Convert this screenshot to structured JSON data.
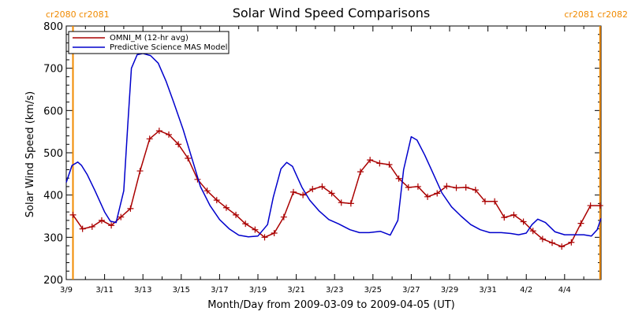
{
  "chart_data": {
    "type": "line",
    "title": "Solar Wind Speed Comparisons",
    "xlabel": "Month/Day from 2009-03-09 to 2009-04-05 (UT)",
    "ylabel": "Solar Wind Speed (km/s)",
    "xlim": [
      0,
      27.9
    ],
    "ylim": [
      200,
      800
    ],
    "yticks": [
      200,
      300,
      400,
      500,
      600,
      700,
      800
    ],
    "xticks": [
      {
        "x": 0,
        "label": "3/9"
      },
      {
        "x": 2,
        "label": "3/11"
      },
      {
        "x": 4,
        "label": "3/13"
      },
      {
        "x": 6,
        "label": "3/15"
      },
      {
        "x": 8,
        "label": "3/17"
      },
      {
        "x": 10,
        "label": "3/19"
      },
      {
        "x": 12,
        "label": "3/21"
      },
      {
        "x": 14,
        "label": "3/23"
      },
      {
        "x": 16,
        "label": "3/25"
      },
      {
        "x": 18,
        "label": "3/27"
      },
      {
        "x": 20,
        "label": "3/29"
      },
      {
        "x": 22,
        "label": "3/31"
      },
      {
        "x": 24,
        "label": "4/2"
      },
      {
        "x": 26,
        "label": "4/4"
      }
    ],
    "carrington_markers": [
      {
        "x": 0.35,
        "labels": [
          "cr2080",
          "cr2081"
        ],
        "side": "left"
      },
      {
        "x": 27.85,
        "labels": [
          "cr2081",
          "cr2082"
        ],
        "side": "right"
      }
    ],
    "legend_position": "top-left",
    "series": [
      {
        "name": "OMNI_M (12-hr avg)",
        "color": "#aa0000",
        "marker": "plus",
        "x": [
          0.35,
          0.85,
          1.35,
          1.85,
          2.35,
          2.85,
          3.35,
          3.85,
          4.35,
          4.85,
          5.35,
          5.85,
          6.35,
          6.85,
          7.35,
          7.85,
          8.35,
          8.85,
          9.35,
          9.85,
          10.35,
          10.85,
          11.35,
          11.85,
          12.35,
          12.85,
          13.35,
          13.85,
          14.35,
          14.85,
          15.35,
          15.85,
          16.35,
          16.85,
          17.35,
          17.85,
          18.35,
          18.85,
          19.35,
          19.85,
          20.35,
          20.85,
          21.35,
          21.85,
          22.35,
          22.85,
          23.35,
          23.85,
          24.35,
          24.85,
          25.35,
          25.85,
          26.35,
          26.85,
          27.35,
          27.85
        ],
        "values": [
          353,
          320,
          325,
          340,
          328,
          348,
          368,
          457,
          533,
          552,
          543,
          520,
          487,
          437,
          410,
          388,
          370,
          353,
          332,
          318,
          300,
          310,
          348,
          407,
          400,
          414,
          420,
          404,
          382,
          380,
          455,
          483,
          475,
          472,
          439,
          418,
          420,
          396,
          404,
          421,
          417,
          418,
          412,
          385,
          385,
          347,
          353,
          337,
          315,
          296,
          287,
          278,
          288,
          333,
          375,
          375
        ]
      },
      {
        "name": "Predictive Science MAS Model",
        "color": "#0000cc",
        "marker": "none",
        "x": [
          0,
          0.3,
          0.6,
          0.8,
          1.1,
          1.5,
          2.0,
          2.3,
          2.6,
          3.0,
          3.2,
          3.4,
          3.7,
          4.0,
          4.4,
          4.8,
          5.2,
          5.6,
          6.1,
          6.6,
          7.0,
          7.5,
          8.0,
          8.5,
          9.0,
          9.5,
          10.0,
          10.5,
          10.8,
          11.2,
          11.5,
          11.8,
          12.0,
          12.3,
          12.7,
          13.2,
          13.7,
          14.2,
          14.8,
          15.3,
          15.8,
          16.4,
          16.9,
          17.3,
          17.6,
          18.0,
          18.3,
          18.7,
          19.1,
          19.6,
          20.1,
          20.6,
          21.1,
          21.6,
          22.1,
          22.7,
          23.2,
          23.6,
          24.0,
          24.3,
          24.6,
          25.0,
          25.5,
          26.0,
          26.5,
          27.0,
          27.4,
          27.7,
          27.9
        ],
        "values": [
          430,
          470,
          478,
          470,
          448,
          410,
          360,
          338,
          335,
          410,
          560,
          700,
          732,
          735,
          730,
          712,
          670,
          620,
          555,
          480,
          420,
          375,
          342,
          320,
          305,
          301,
          303,
          330,
          395,
          462,
          477,
          468,
          448,
          418,
          388,
          362,
          342,
          332,
          318,
          311,
          311,
          314,
          305,
          340,
          460,
          538,
          530,
          495,
          455,
          405,
          372,
          350,
          330,
          318,
          311,
          311,
          309,
          306,
          310,
          330,
          343,
          335,
          313,
          306,
          306,
          306,
          303,
          318,
          345
        ]
      }
    ]
  }
}
